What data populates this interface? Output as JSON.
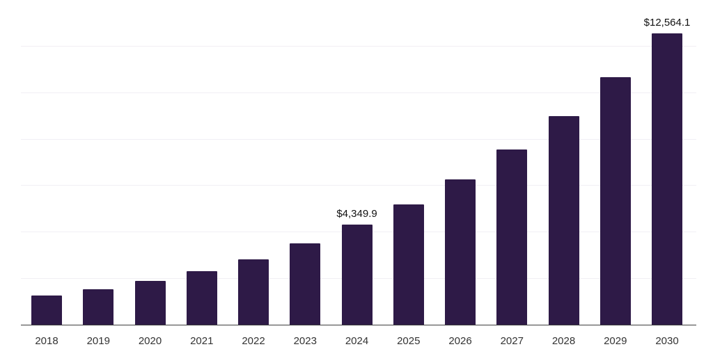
{
  "chart_data": {
    "type": "bar",
    "title": "",
    "xlabel": "",
    "ylabel": "",
    "categories": [
      "2018",
      "2019",
      "2020",
      "2021",
      "2022",
      "2023",
      "2024",
      "2025",
      "2026",
      "2027",
      "2028",
      "2029",
      "2030"
    ],
    "values": [
      1290,
      1560,
      1910,
      2330,
      2840,
      3530,
      4349.9,
      5200,
      6280,
      7570,
      9000,
      10680,
      12564.1
    ],
    "annotations": [
      {
        "category": "2024",
        "text": "$4,349.9"
      },
      {
        "category": "2030",
        "text": "$12,564.1"
      }
    ],
    "ylim": [
      0,
      14000
    ],
    "grid_step": 2000,
    "grid": true,
    "legend": "none"
  },
  "colors": {
    "bar": "#2E1A47",
    "grid": "#F1EFF4",
    "axis": "#3C3C3C",
    "value_label": "#111111",
    "tick_label": "#333333"
  }
}
